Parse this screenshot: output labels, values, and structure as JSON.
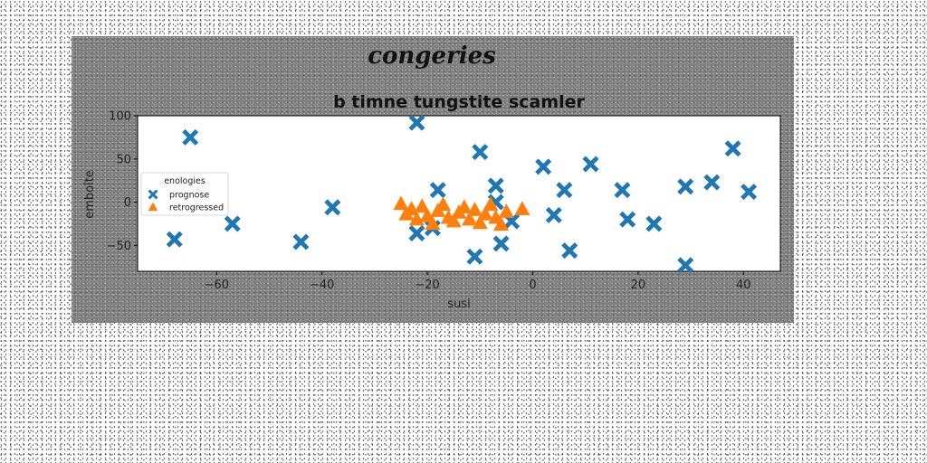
{
  "figure": {
    "suptitle": "congeries"
  },
  "chart_data": {
    "type": "scatter",
    "title": "b timne tungstite scamler",
    "xlabel": "susi",
    "ylabel": "emboîte",
    "xlim": [
      -75,
      47
    ],
    "ylim": [
      -80,
      100
    ],
    "xticks": [
      -60,
      -40,
      -20,
      0,
      20,
      40
    ],
    "yticks": [
      -50,
      0,
      50,
      100
    ],
    "grid": false,
    "legend": {
      "title": "enologies",
      "placement": "center-left"
    },
    "series": [
      {
        "name": "prognose",
        "marker": "x",
        "color": "#1f77b4",
        "points": [
          [
            -65,
            75
          ],
          [
            -68,
            -43
          ],
          [
            -57,
            -25
          ],
          [
            -44,
            -46
          ],
          [
            -38,
            -6
          ],
          [
            -22,
            92
          ],
          [
            -22,
            -36
          ],
          [
            -18,
            14
          ],
          [
            -19,
            -30
          ],
          [
            -10,
            58
          ],
          [
            -11,
            -63
          ],
          [
            -7,
            19
          ],
          [
            -7,
            0
          ],
          [
            -6,
            -48
          ],
          [
            -4,
            -22
          ],
          [
            2,
            41
          ],
          [
            4,
            -15
          ],
          [
            6,
            14
          ],
          [
            7,
            -56
          ],
          [
            11,
            44
          ],
          [
            17,
            14
          ],
          [
            18,
            -20
          ],
          [
            23,
            -25
          ],
          [
            29,
            18
          ],
          [
            29,
            -73
          ],
          [
            34,
            23
          ],
          [
            38,
            62
          ],
          [
            41,
            12
          ]
        ]
      },
      {
        "name": "retrogressed",
        "marker": "^",
        "color": "#ff7f0e",
        "points": [
          [
            -25,
            -2
          ],
          [
            -24,
            -14
          ],
          [
            -23,
            -8
          ],
          [
            -22,
            -20
          ],
          [
            -21,
            -5
          ],
          [
            -20,
            -16
          ],
          [
            -19,
            -25
          ],
          [
            -18,
            -10
          ],
          [
            -17,
            -3
          ],
          [
            -16,
            -18
          ],
          [
            -15,
            -22
          ],
          [
            -14,
            -12
          ],
          [
            -13,
            -6
          ],
          [
            -12,
            -20
          ],
          [
            -11,
            -9
          ],
          [
            -10,
            -24
          ],
          [
            -9,
            -14
          ],
          [
            -8,
            -3
          ],
          [
            -7,
            -18
          ],
          [
            -6,
            -26
          ],
          [
            -5,
            -11
          ],
          [
            -2,
            -8
          ]
        ]
      }
    ]
  }
}
